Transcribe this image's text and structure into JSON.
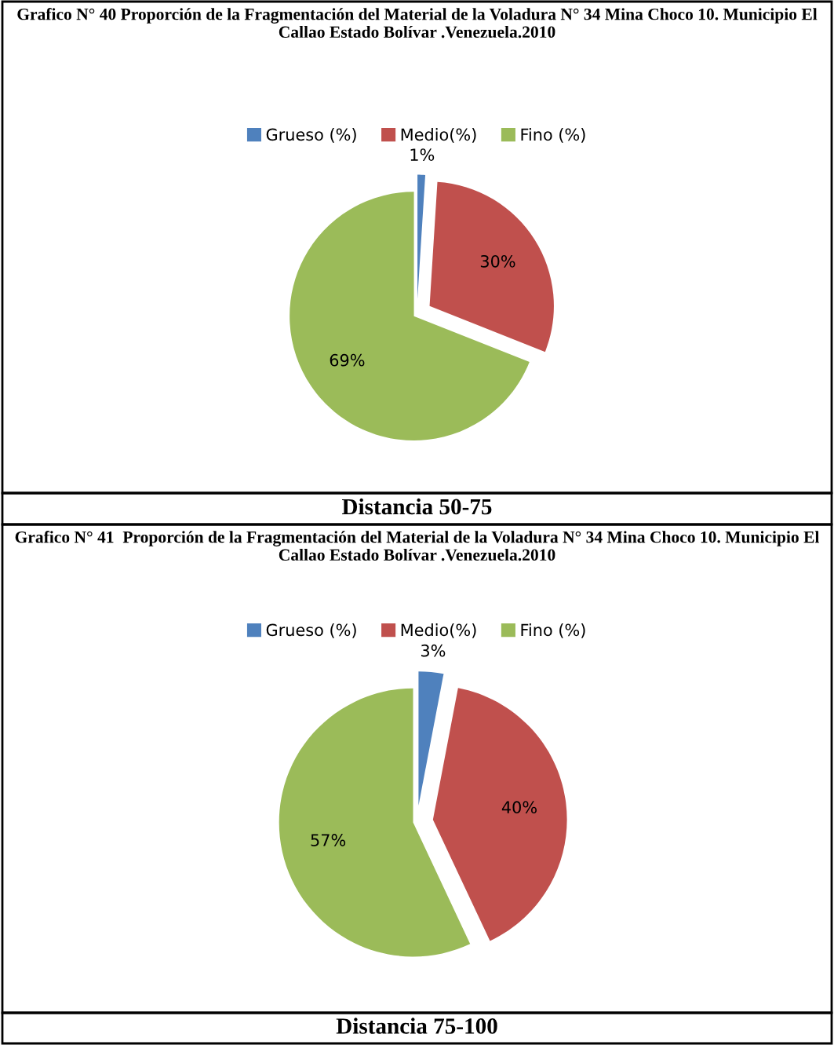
{
  "chart_data": [
    {
      "type": "pie",
      "title": "Grafico N° 40 Proporción de la Fragmentación del Material de la Voladura N° 34 Mina Choco 10. Municipio El Callao Estado Bolívar .Venezuela.2010",
      "categories": [
        "Grueso (%)",
        "Medio(%)",
        "Fino (%)"
      ],
      "values": [
        1,
        30,
        69
      ],
      "colors": [
        "#4f81bd",
        "#c0504d",
        "#9bbb59"
      ],
      "value_labels": [
        "1%",
        "30%",
        "69%"
      ],
      "legend": "top",
      "annotations": [
        "Distancia 50-75"
      ]
    },
    {
      "type": "pie",
      "title": "Grafico N° 41  Proporción de la Fragmentación del Material de la Voladura N° 34 Mina Choco 10. Municipio El Callao Estado Bolívar .Venezuela.2010",
      "categories": [
        "Grueso (%)",
        "Medio(%)",
        "Fino (%)"
      ],
      "values": [
        3,
        40,
        57
      ],
      "colors": [
        "#4f81bd",
        "#c0504d",
        "#9bbb59"
      ],
      "value_labels": [
        "3%",
        "40%",
        "57%"
      ],
      "legend": "top",
      "annotations": [
        "Distancia 75-100"
      ]
    }
  ]
}
